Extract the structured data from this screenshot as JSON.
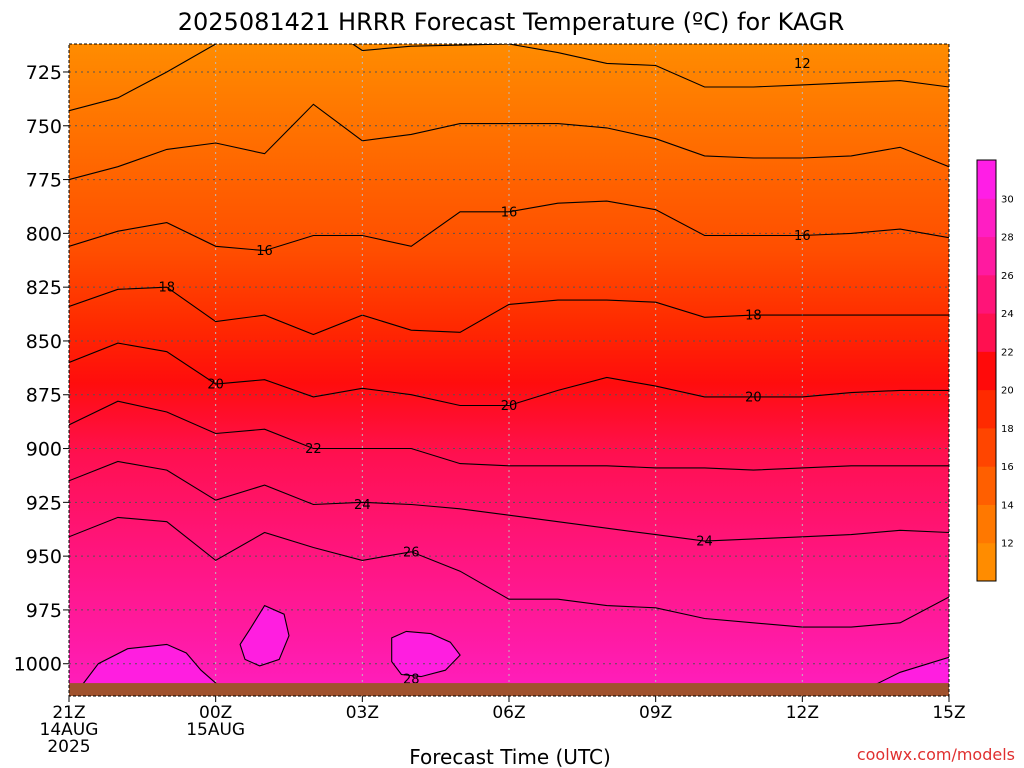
{
  "title": "2025081421 HRRR Forecast Temperature (ºC) for KAGR",
  "xlabel": "Forecast Time (UTC)",
  "credit": "coolwx.com/models",
  "colors": {
    "ground": "#a0522d",
    "grid": "#bbbbbb",
    "contour": "#000000",
    "credit": "#e03030"
  },
  "chart_data": {
    "type": "heatmap",
    "title": "2025081421 HRRR Forecast Temperature (ºC) for KAGR",
    "xlabel": "Forecast Time (UTC)",
    "ylabel": "",
    "x_range": [
      0,
      18
    ],
    "y_range": [
      712,
      1015
    ],
    "y_scale": "reversed",
    "grid": true,
    "legend": "colorbar-right",
    "x_ticks": [
      {
        "hour": 0,
        "lines": [
          "21Z",
          "14AUG",
          "2025"
        ]
      },
      {
        "hour": 3,
        "lines": [
          "00Z",
          "15AUG"
        ]
      },
      {
        "hour": 6,
        "lines": [
          "03Z"
        ]
      },
      {
        "hour": 9,
        "lines": [
          "06Z"
        ]
      },
      {
        "hour": 12,
        "lines": [
          "09Z"
        ]
      },
      {
        "hour": 15,
        "lines": [
          "12Z"
        ]
      },
      {
        "hour": 18,
        "lines": [
          "15Z"
        ]
      }
    ],
    "y_ticks": [
      "725",
      "750",
      "775",
      "800",
      "825",
      "850",
      "875",
      "900",
      "925",
      "950",
      "975",
      "1000"
    ],
    "colorbar": {
      "levels": [
        10,
        12,
        14,
        16,
        18,
        20,
        22,
        24,
        26,
        28,
        30,
        32
      ],
      "labels": [
        "12",
        "14",
        "16",
        "18",
        "20",
        "22",
        "24",
        "26",
        "28",
        "30"
      ],
      "colors": [
        "#ff8c00",
        "#ff7800",
        "#ff5f00",
        "#ff4500",
        "#ff2a00",
        "#ff0a0a",
        "#ff1050",
        "#ff1478",
        "#ff1aa0",
        "#ff1ec3",
        "#ff1ee6"
      ]
    },
    "contours": [
      {
        "level": 12,
        "points": [
          [
            0,
            743
          ],
          [
            1,
            737
          ],
          [
            2,
            725
          ],
          [
            3,
            712
          ]
        ]
      },
      {
        "level": 12,
        "points": [
          [
            5.8,
            712
          ],
          [
            6,
            715
          ],
          [
            7,
            713
          ],
          [
            9,
            712
          ],
          [
            10,
            716
          ],
          [
            11,
            721
          ],
          [
            12,
            722
          ],
          [
            13,
            732
          ],
          [
            14,
            732
          ],
          [
            15,
            731
          ],
          [
            16,
            730
          ],
          [
            17,
            729
          ],
          [
            18,
            732
          ]
        ]
      },
      {
        "level": 14,
        "points": [
          [
            0,
            775
          ],
          [
            1,
            769
          ],
          [
            2,
            761
          ],
          [
            3,
            758
          ],
          [
            4,
            763
          ],
          [
            5,
            740
          ],
          [
            6,
            757
          ],
          [
            7,
            754
          ],
          [
            8,
            749
          ],
          [
            9,
            749
          ],
          [
            10,
            749
          ],
          [
            11,
            751
          ],
          [
            12,
            756
          ],
          [
            13,
            764
          ],
          [
            14,
            765
          ],
          [
            15,
            765
          ],
          [
            16,
            764
          ],
          [
            17,
            760
          ],
          [
            18,
            769
          ]
        ]
      },
      {
        "level": 16,
        "points": [
          [
            0,
            806
          ],
          [
            1,
            799
          ],
          [
            2,
            795
          ],
          [
            3,
            806
          ],
          [
            4,
            808
          ],
          [
            5,
            801
          ],
          [
            6,
            801
          ],
          [
            7,
            806
          ],
          [
            8,
            790
          ],
          [
            9,
            790
          ],
          [
            10,
            786
          ],
          [
            11,
            785
          ],
          [
            12,
            789
          ],
          [
            13,
            801
          ],
          [
            14,
            801
          ],
          [
            15,
            801
          ],
          [
            16,
            800
          ],
          [
            17,
            798
          ],
          [
            18,
            802
          ]
        ]
      },
      {
        "level": 18,
        "points": [
          [
            0,
            834
          ],
          [
            1,
            826
          ],
          [
            2,
            825
          ],
          [
            3,
            841
          ],
          [
            4,
            838
          ],
          [
            5,
            847
          ],
          [
            6,
            838
          ],
          [
            7,
            845
          ],
          [
            8,
            846
          ],
          [
            9,
            833
          ],
          [
            10,
            831
          ],
          [
            11,
            831
          ],
          [
            12,
            832
          ],
          [
            13,
            839
          ],
          [
            14,
            838
          ],
          [
            15,
            838
          ],
          [
            16,
            838
          ],
          [
            17,
            838
          ],
          [
            18,
            838
          ]
        ]
      },
      {
        "level": 20,
        "points": [
          [
            0,
            860
          ],
          [
            1,
            851
          ],
          [
            2,
            855
          ],
          [
            3,
            870
          ],
          [
            4,
            868
          ],
          [
            5,
            876
          ],
          [
            6,
            872
          ],
          [
            7,
            875
          ],
          [
            8,
            880
          ],
          [
            9,
            880
          ],
          [
            10,
            873
          ],
          [
            11,
            867
          ],
          [
            12,
            871
          ],
          [
            13,
            876
          ],
          [
            14,
            876
          ],
          [
            15,
            876
          ],
          [
            16,
            874
          ],
          [
            17,
            873
          ],
          [
            18,
            873
          ]
        ]
      },
      {
        "level": 22,
        "points": [
          [
            0,
            889
          ],
          [
            1,
            878
          ],
          [
            2,
            883
          ],
          [
            3,
            893
          ],
          [
            4,
            891
          ],
          [
            5,
            900
          ],
          [
            6,
            900
          ],
          [
            7,
            900
          ],
          [
            8,
            907
          ],
          [
            9,
            908
          ],
          [
            10,
            908
          ],
          [
            11,
            908
          ],
          [
            12,
            909
          ],
          [
            13,
            909
          ],
          [
            14,
            910
          ],
          [
            15,
            909
          ],
          [
            16,
            908
          ],
          [
            17,
            908
          ],
          [
            18,
            908
          ]
        ]
      },
      {
        "level": 24,
        "points": [
          [
            0,
            915
          ],
          [
            1,
            906
          ],
          [
            2,
            910
          ],
          [
            3,
            924
          ],
          [
            4,
            917
          ],
          [
            5,
            926
          ],
          [
            6,
            925
          ],
          [
            7,
            926
          ],
          [
            8,
            928
          ],
          [
            9,
            931
          ],
          [
            10,
            934
          ],
          [
            11,
            937
          ],
          [
            12,
            940
          ],
          [
            13,
            943
          ],
          [
            14,
            942
          ],
          [
            15,
            941
          ],
          [
            16,
            940
          ],
          [
            17,
            938
          ],
          [
            18,
            939
          ]
        ]
      },
      {
        "level": 26,
        "points": [
          [
            0,
            941
          ],
          [
            1,
            932
          ],
          [
            2,
            934
          ],
          [
            3,
            952
          ],
          [
            4,
            939
          ],
          [
            5,
            946
          ],
          [
            6,
            952
          ],
          [
            7,
            948
          ],
          [
            8,
            957
          ],
          [
            9,
            970
          ],
          [
            10,
            970
          ],
          [
            11,
            973
          ],
          [
            12,
            974
          ],
          [
            13,
            979
          ],
          [
            14,
            981
          ],
          [
            15,
            983
          ],
          [
            16,
            983
          ],
          [
            17,
            981
          ],
          [
            18,
            969
          ]
        ]
      },
      {
        "level": 28,
        "points": [
          [
            0.2,
            1012
          ],
          [
            0.6,
            1000
          ],
          [
            1.2,
            993
          ],
          [
            2,
            991
          ],
          [
            2.4,
            995
          ],
          [
            2.7,
            1003
          ],
          [
            3,
            1009
          ],
          [
            3.3,
            1013
          ]
        ]
      },
      {
        "level": 28,
        "points": [
          [
            3.5,
            991
          ],
          [
            3.7,
            984
          ],
          [
            4.0,
            973
          ],
          [
            4.4,
            977
          ],
          [
            4.5,
            987
          ],
          [
            4.3,
            998
          ],
          [
            3.9,
            1001
          ],
          [
            3.6,
            998
          ]
        ],
        "closed": true
      },
      {
        "level": 28,
        "points": [
          [
            6.6,
            988
          ],
          [
            6.9,
            985
          ],
          [
            7.4,
            986
          ],
          [
            7.8,
            990
          ],
          [
            8.0,
            996
          ],
          [
            7.7,
            1003
          ],
          [
            7.2,
            1006
          ],
          [
            6.8,
            1005
          ],
          [
            6.6,
            999
          ]
        ],
        "closed": true
      },
      {
        "level": 28,
        "points": [
          [
            16.2,
            1013
          ],
          [
            17,
            1004
          ],
          [
            18,
            997
          ]
        ]
      }
    ],
    "contour_labels": [
      {
        "text": "12",
        "x": 15.0,
        "y": 721
      },
      {
        "text": "16",
        "x": 9.0,
        "y": 790
      },
      {
        "text": "16",
        "x": 4.0,
        "y": 808
      },
      {
        "text": "16",
        "x": 15.0,
        "y": 801
      },
      {
        "text": "18",
        "x": 2.0,
        "y": 825
      },
      {
        "text": "18",
        "x": 14.0,
        "y": 838
      },
      {
        "text": "20",
        "x": 3.0,
        "y": 870
      },
      {
        "text": "20",
        "x": 9.0,
        "y": 880
      },
      {
        "text": "20",
        "x": 14.0,
        "y": 876
      },
      {
        "text": "22",
        "x": 5.0,
        "y": 900
      },
      {
        "text": "24",
        "x": 6.0,
        "y": 926
      },
      {
        "text": "24",
        "x": 13.0,
        "y": 943
      },
      {
        "text": "26",
        "x": 7.0,
        "y": 948
      },
      {
        "text": "28",
        "x": 7.0,
        "y": 1007
      }
    ],
    "ground_pressure": 1009
  }
}
